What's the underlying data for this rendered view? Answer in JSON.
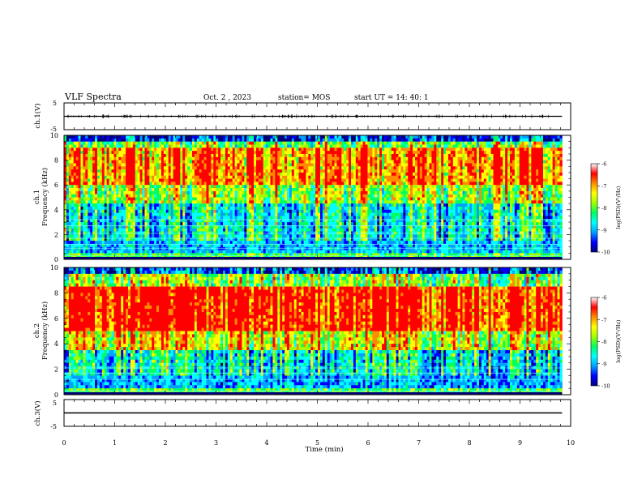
{
  "header": {
    "title": "VLF Spectra",
    "date": "Oct. 2 , 2023",
    "station": "station= MOS",
    "start": "start UT =  14: 40: 1"
  },
  "chart_data": [
    {
      "type": "line",
      "panel": "ch1-waveform",
      "ylabel": "ch.1(V)",
      "yticks": [
        "5",
        "-5"
      ],
      "ylim": [
        -5,
        5
      ],
      "xlim": [
        0,
        10
      ],
      "series": [
        {
          "x": [
            0,
            9.83
          ],
          "y": [
            0,
            0
          ]
        }
      ]
    },
    {
      "type": "heatmap",
      "panel": "ch1-spectrogram",
      "ylabel": "ch.1\nFrequency (kHz)",
      "ylabel_top": "ch.1",
      "ylabel_bottom": "Frequency (kHz)",
      "yticks": [
        "0",
        "2",
        "4",
        "6",
        "8",
        "10"
      ],
      "ylim": [
        0,
        10
      ],
      "xlim": [
        0,
        10
      ],
      "data_end_min": 9.83,
      "colorbar": {
        "label": "log(PSD)(V²/Hz)",
        "ticks": [
          "-6",
          "-7",
          "-8",
          "-9",
          "-10"
        ],
        "range": [
          -10,
          -6
        ]
      },
      "horizontal_lines_khz": [
        0.3,
        0.9,
        1.2,
        1.7,
        2.1,
        2.7,
        3.2
      ]
    },
    {
      "type": "heatmap",
      "panel": "ch2-spectrogram",
      "ylabel": "ch.2\nFrequency (kHz)",
      "ylabel_top": "ch.2",
      "ylabel_bottom": "Frequency (kHz)",
      "yticks": [
        "0",
        "2",
        "4",
        "6",
        "8",
        "10"
      ],
      "ylim": [
        0,
        10
      ],
      "xlim": [
        0,
        10
      ],
      "data_end_min": 9.83,
      "colorbar": {
        "label": "log(PSD)(V²/Hz)",
        "ticks": [
          "-6",
          "-7",
          "-8",
          "-9",
          "-10"
        ],
        "range": [
          -10,
          -6
        ]
      },
      "horizontal_lines_khz": [
        0.3,
        1.2,
        1.7,
        2.1
      ]
    },
    {
      "type": "line",
      "panel": "ch3-waveform",
      "ylabel": "ch.3(V)",
      "yticks": [
        "5",
        "-5"
      ],
      "ylim": [
        -5,
        5
      ],
      "xlim": [
        0,
        10
      ],
      "series": [
        {
          "x": [
            0,
            9.83
          ],
          "y": [
            0,
            0
          ]
        }
      ]
    }
  ],
  "xaxis": {
    "label": "Time  (min)",
    "ticks": [
      "0",
      "1",
      "2",
      "3",
      "4",
      "5",
      "6",
      "7",
      "8",
      "9",
      "10"
    ]
  },
  "colors": {
    "line": "#000000",
    "cmap": [
      "#00007f",
      "#0000ff",
      "#00a0ff",
      "#00ffff",
      "#00ff60",
      "#a0ff00",
      "#ffff00",
      "#ff8c00",
      "#ff0000",
      "#ffffff"
    ]
  }
}
